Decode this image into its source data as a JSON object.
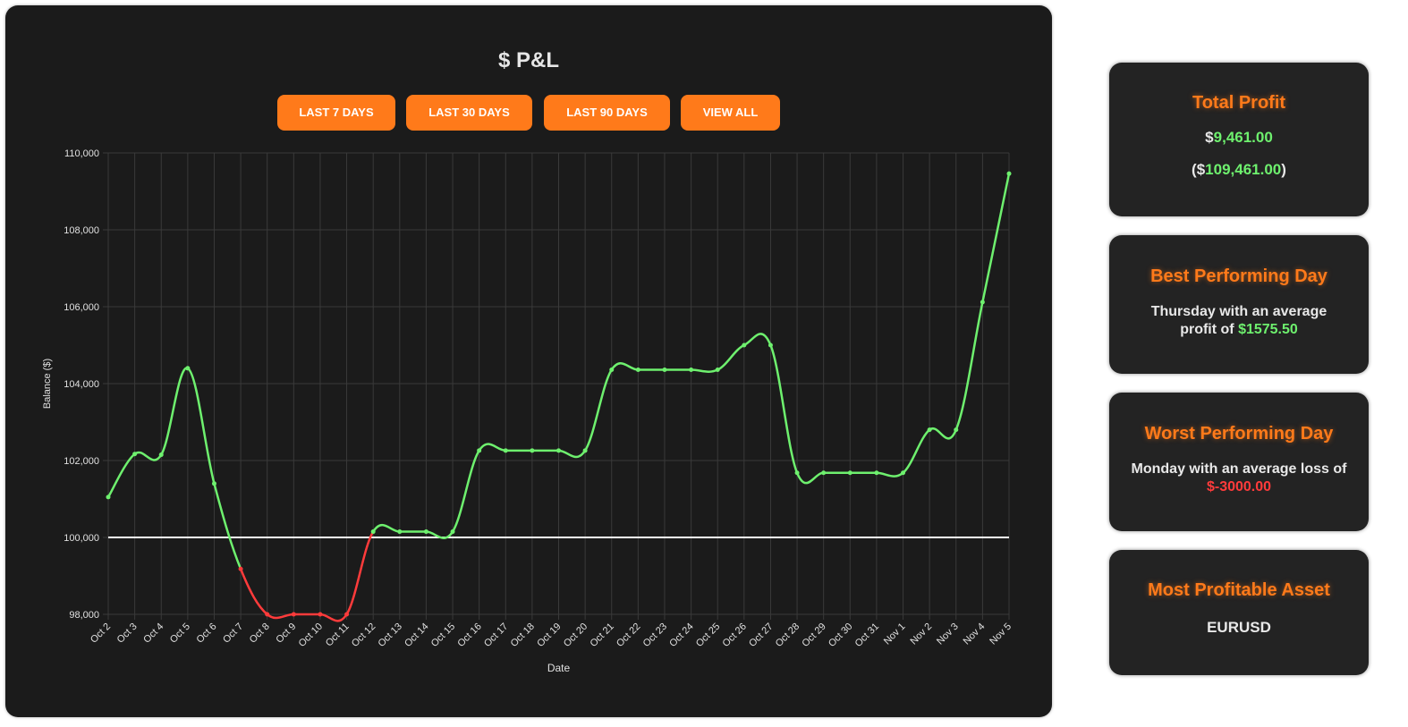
{
  "chart_data": {
    "type": "line",
    "title": "$ P&L",
    "xlabel": "Date",
    "ylabel": "Balance ($)",
    "ylim": [
      98000,
      110000
    ],
    "yticks": [
      98000,
      100000,
      102000,
      104000,
      106000,
      108000,
      110000
    ],
    "ytick_labels": [
      "98,000",
      "100,000",
      "102,000",
      "104,000",
      "106,000",
      "108,000",
      "110,000"
    ],
    "baseline": 100000,
    "grid": true,
    "categories": [
      "Oct 2",
      "Oct 3",
      "Oct 4",
      "Oct 5",
      "Oct 6",
      "Oct 7",
      "Oct 8",
      "Oct 9",
      "Oct 10",
      "Oct 11",
      "Oct 12",
      "Oct 13",
      "Oct 14",
      "Oct 15",
      "Oct 16",
      "Oct 17",
      "Oct 18",
      "Oct 19",
      "Oct 20",
      "Oct 21",
      "Oct 22",
      "Oct 23",
      "Oct 24",
      "Oct 25",
      "Oct 26",
      "Oct 27",
      "Oct 28",
      "Oct 29",
      "Oct 30",
      "Oct 31",
      "Nov 1",
      "Nov 2",
      "Nov 3",
      "Nov 4",
      "Nov 5"
    ],
    "series": [
      {
        "values": [
          101050,
          102170,
          102150,
          104400,
          101400,
          99180,
          98000,
          98000,
          98000,
          98000,
          100150,
          100150,
          100150,
          100150,
          102260,
          102260,
          102260,
          102260,
          102260,
          104360,
          104360,
          104360,
          104360,
          104360,
          105000,
          105000,
          101680,
          101680,
          101680,
          101680,
          101680,
          102800,
          102800,
          106120,
          109461
        ]
      }
    ],
    "colors": {
      "positive": "#6ef06e",
      "negative": "#ff3b3b",
      "baseline": "#ffffff",
      "grid": "#3a3a3a",
      "axis_text": "#e0e0e0"
    }
  },
  "buttons": {
    "last7": "LAST 7 DAYS",
    "last30": "LAST 30 DAYS",
    "last90": "LAST 90 DAYS",
    "all": "VIEW ALL"
  },
  "cards": {
    "total": {
      "title": "Total Profit",
      "currency": "$",
      "profit": "9,461.00",
      "paren_open": "($",
      "balance": "109,461.00",
      "paren_close": ")"
    },
    "best": {
      "title": "Best Performing Day",
      "text": "Thursday with an average profit of ",
      "value": "$1575.50"
    },
    "worst": {
      "title": "Worst Performing Day",
      "text": "Monday with an average loss of ",
      "value": "$-3000.00"
    },
    "asset": {
      "title": "Most Profitable Asset",
      "value": "EURUSD"
    }
  }
}
